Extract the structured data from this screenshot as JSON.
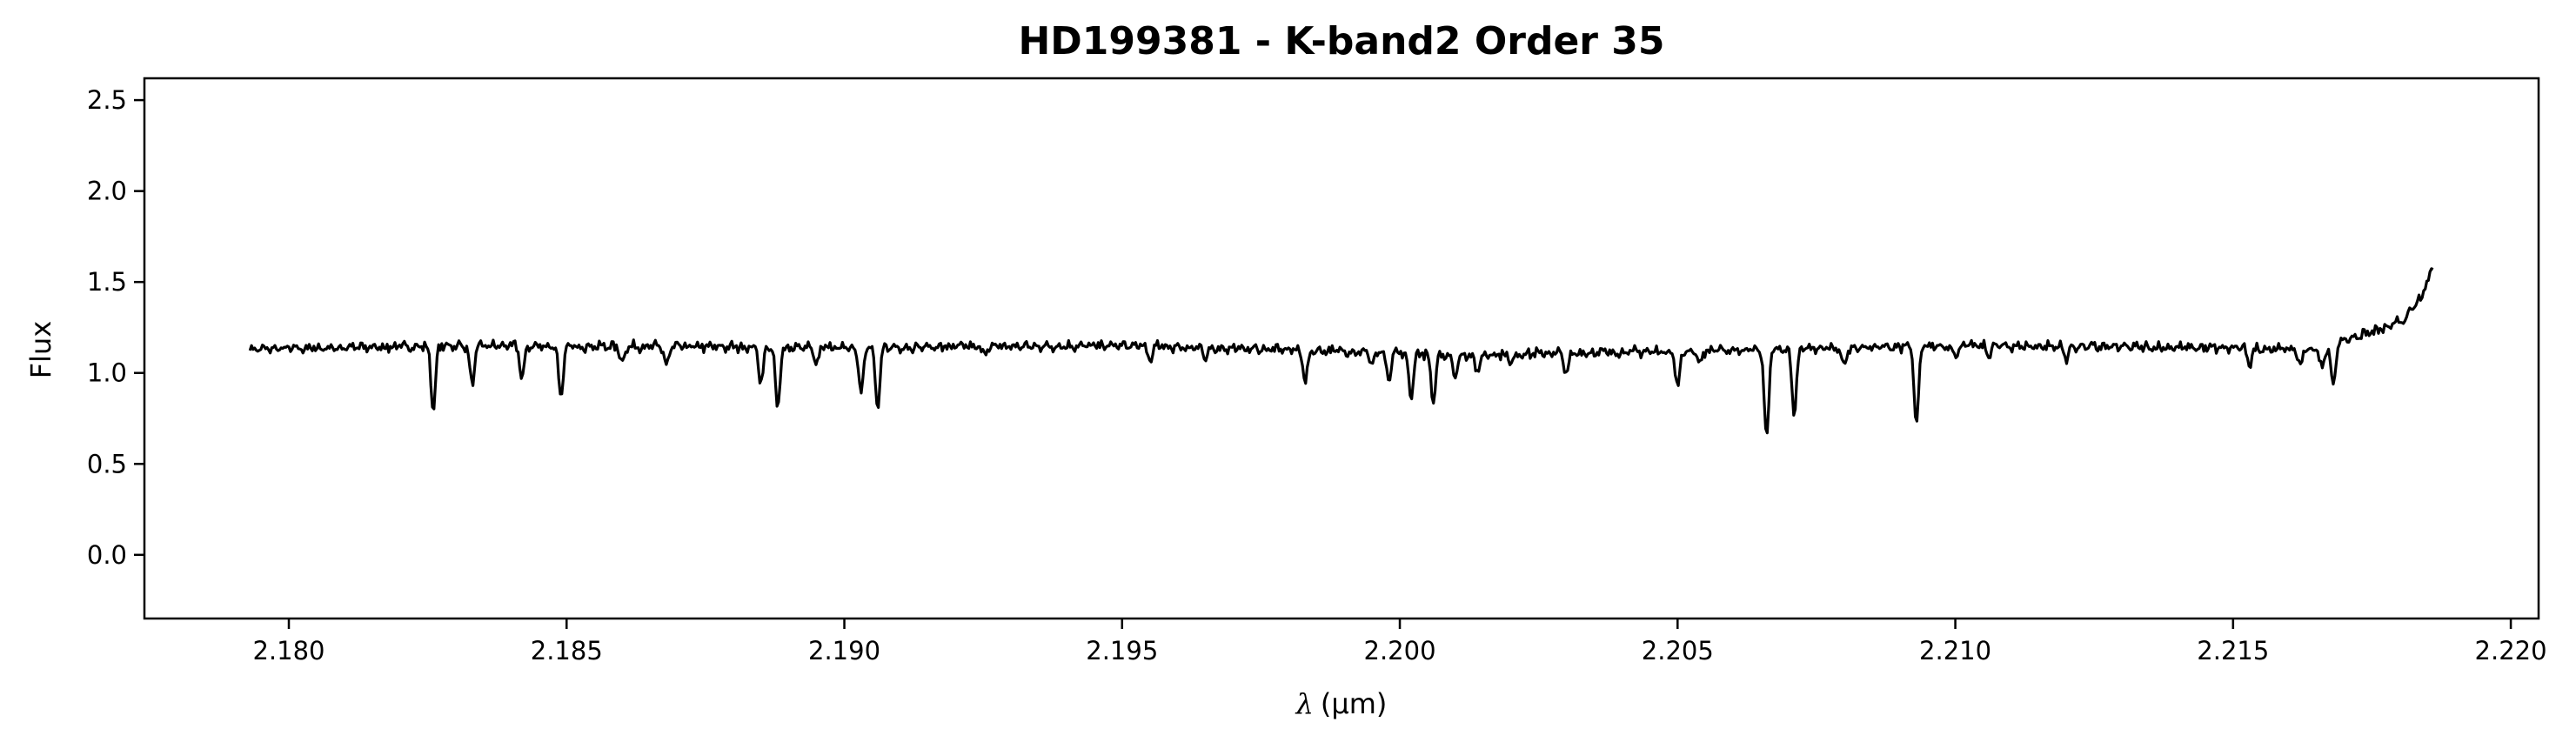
{
  "chart_data": {
    "type": "line",
    "title": "HD199381 - K-band2 Order 35",
    "xlabel_symbol": "λ",
    "xlabel_unit": "(μm)",
    "ylabel": "Flux",
    "xlim": [
      2.1774,
      2.2205
    ],
    "ylim": [
      -0.35,
      2.62
    ],
    "grid": false,
    "legend": "none",
    "line_color": "#000000",
    "xticks": [
      {
        "value": 2.18,
        "label": "2.180"
      },
      {
        "value": 2.185,
        "label": "2.185"
      },
      {
        "value": 2.19,
        "label": "2.190"
      },
      {
        "value": 2.195,
        "label": "2.195"
      },
      {
        "value": 2.2,
        "label": "2.200"
      },
      {
        "value": 2.205,
        "label": "2.205"
      },
      {
        "value": 2.21,
        "label": "2.210"
      },
      {
        "value": 2.215,
        "label": "2.215"
      },
      {
        "value": 2.22,
        "label": "2.220"
      }
    ],
    "yticks": [
      {
        "value": 0.0,
        "label": "0.0"
      },
      {
        "value": 0.5,
        "label": "0.5"
      },
      {
        "value": 1.0,
        "label": "1.0"
      },
      {
        "value": 1.5,
        "label": "1.5"
      },
      {
        "value": 2.0,
        "label": "2.0"
      },
      {
        "value": 2.5,
        "label": "2.5"
      }
    ],
    "series": [
      {
        "x_start": 2.1793,
        "x_end": 2.2186,
        "continuum": [
          [
            2.1793,
            1.13
          ],
          [
            2.183,
            1.15
          ],
          [
            2.19,
            1.14
          ],
          [
            2.195,
            1.15
          ],
          [
            2.199,
            1.12
          ],
          [
            2.201,
            1.1
          ],
          [
            2.205,
            1.12
          ],
          [
            2.21,
            1.15
          ],
          [
            2.214,
            1.14
          ],
          [
            2.2165,
            1.13
          ],
          [
            2.2172,
            1.2
          ],
          [
            2.2178,
            1.25
          ],
          [
            2.2181,
            1.3
          ],
          [
            2.2184,
            1.42
          ],
          [
            2.2186,
            1.58
          ]
        ],
        "absorption_lines": [
          [
            2.1826,
            0.8
          ],
          [
            2.1833,
            0.93
          ],
          [
            2.1842,
            0.97
          ],
          [
            2.1849,
            0.86
          ],
          [
            2.186,
            1.06
          ],
          [
            2.1868,
            1.04
          ],
          [
            2.1885,
            0.95
          ],
          [
            2.1888,
            0.8
          ],
          [
            2.1895,
            1.04
          ],
          [
            2.1903,
            0.9
          ],
          [
            2.1906,
            0.8
          ],
          [
            2.1925,
            1.1
          ],
          [
            2.1955,
            1.07
          ],
          [
            2.1965,
            1.07
          ],
          [
            2.1983,
            0.95
          ],
          [
            2.1995,
            1.05
          ],
          [
            2.1998,
            0.95
          ],
          [
            2.2002,
            0.86
          ],
          [
            2.2006,
            0.83
          ],
          [
            2.201,
            0.98
          ],
          [
            2.2014,
            1.0
          ],
          [
            2.202,
            1.05
          ],
          [
            2.203,
            0.99
          ],
          [
            2.205,
            0.92
          ],
          [
            2.2054,
            1.05
          ],
          [
            2.2066,
            0.64
          ],
          [
            2.2071,
            0.76
          ],
          [
            2.208,
            1.04
          ],
          [
            2.2093,
            0.71
          ],
          [
            2.21,
            1.09
          ],
          [
            2.2106,
            1.1
          ],
          [
            2.212,
            1.08
          ],
          [
            2.2153,
            1.05
          ],
          [
            2.2162,
            1.04
          ],
          [
            2.2166,
            1.02
          ],
          [
            2.2168,
            0.93
          ]
        ]
      }
    ]
  }
}
